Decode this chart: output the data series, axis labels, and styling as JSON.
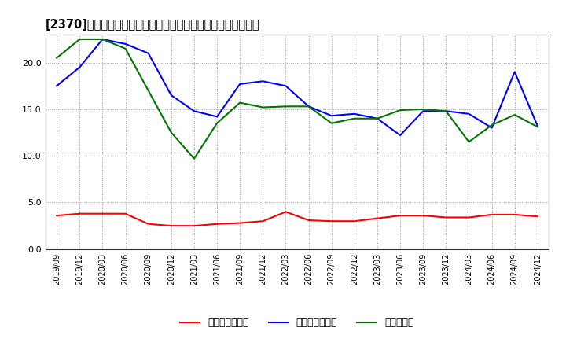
{
  "title": "[2370]　売上債権回転率、買入債務回転率、在庫回転率の推移",
  "x_labels": [
    "2019/09",
    "2019/12",
    "2020/03",
    "2020/06",
    "2020/09",
    "2020/12",
    "2021/03",
    "2021/06",
    "2021/09",
    "2021/12",
    "2022/03",
    "2022/06",
    "2022/09",
    "2022/12",
    "2023/03",
    "2023/06",
    "2023/09",
    "2023/12",
    "2024/03",
    "2024/06",
    "2024/09",
    "2024/12"
  ],
  "receivables_turnover": [
    3.6,
    3.8,
    3.8,
    3.8,
    2.7,
    2.5,
    2.5,
    2.7,
    2.8,
    3.0,
    4.0,
    3.1,
    3.0,
    3.0,
    3.3,
    3.6,
    3.6,
    3.4,
    3.4,
    3.7,
    3.7,
    3.5
  ],
  "payables_turnover": [
    17.5,
    19.5,
    22.5,
    22.0,
    21.0,
    16.5,
    14.8,
    14.2,
    17.7,
    18.0,
    17.5,
    15.3,
    14.3,
    14.5,
    14.0,
    12.2,
    14.8,
    14.8,
    14.5,
    13.0,
    19.0,
    13.2
  ],
  "inventory_turnover": [
    20.5,
    22.5,
    22.5,
    21.5,
    17.0,
    12.5,
    9.7,
    13.5,
    15.7,
    15.2,
    15.3,
    15.3,
    13.5,
    14.0,
    14.0,
    14.9,
    15.0,
    14.8,
    11.5,
    13.3,
    14.4,
    13.1
  ],
  "line_colors": {
    "receivables": "#ff0000",
    "payables": "#0000ff",
    "inventory": "#007700"
  },
  "legend_labels": {
    "receivables": "売上債権回転率",
    "payables": "買入債務回転率",
    "inventory": "在庫回転率"
  },
  "ylim": [
    0,
    23
  ],
  "yticks": [
    0.0,
    5.0,
    10.0,
    15.0,
    20.0
  ],
  "background_color": "#ffffff",
  "grid_color": "#999999",
  "title_fontsize": 10.5
}
